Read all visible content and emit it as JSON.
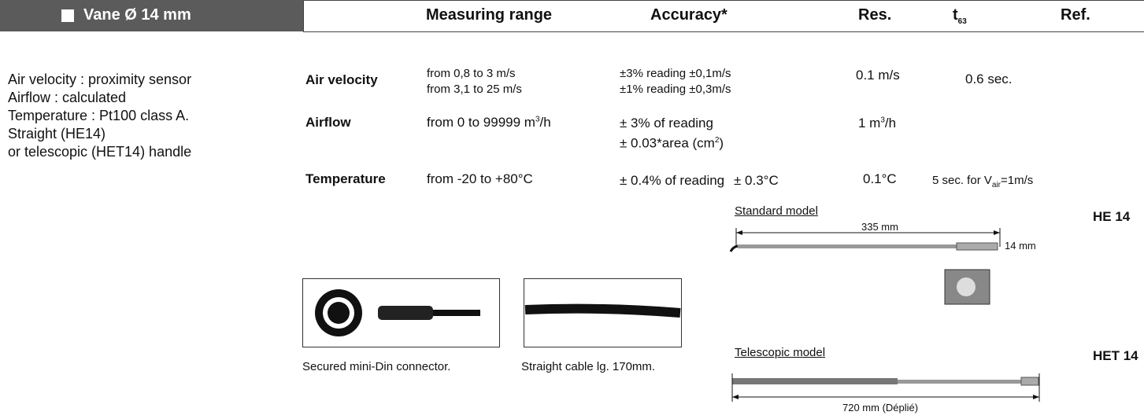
{
  "header": {
    "title": "Vane Ø 14 mm",
    "columns": {
      "range": "Measuring range",
      "accuracy": "Accuracy*",
      "res": "Res.",
      "t63": {
        "t": "t",
        "sub": "63"
      },
      "ref": "Ref."
    }
  },
  "description": [
    "Air velocity : proximity sensor",
    "Airflow : calculated",
    "Temperature : Pt100 class A.",
    "Straight (HE14)",
    "or telescopic (HET14) handle"
  ],
  "rows": [
    {
      "param": "Air velocity",
      "range": [
        "from 0,8 to  3 m/s",
        "from 3,1 to 25 m/s"
      ],
      "accuracy": [
        "±3% reading ±0,1m/s",
        "±1% reading ±0,3m/s"
      ],
      "res": "0.1 m/s",
      "t63": "0.6 sec."
    },
    {
      "param": "Airflow",
      "range": {
        "text": "from 0 to 99999 m",
        "sup": "3",
        "end": "/h"
      },
      "accuracy": [
        "± 3% of reading",
        {
          "text": "± 0.03*area (cm",
          "sup": "2",
          "end": ")"
        }
      ],
      "res": {
        "text": "1 m",
        "sup": "3",
        "end": "/h"
      }
    },
    {
      "param": "Temperature",
      "range": "from -20 to +80°C",
      "accuracy": [
        "± 0.4% of reading",
        "± 0.3°C"
      ],
      "res": "0.1°C",
      "t63": {
        "text": "5 sec. for V",
        "sub": "air",
        "end": "=1m/s"
      }
    }
  ],
  "accessories": [
    {
      "caption": "Secured mini-Din connector."
    },
    {
      "caption": "Straight cable lg. 170mm."
    }
  ],
  "models": [
    {
      "label": "Standard model",
      "length": "335 mm",
      "diameter": "14 mm",
      "ref": "HE 14"
    },
    {
      "label": "Telescopic model",
      "length": "720 mm (Déplié)",
      "ref": "HET 14"
    }
  ]
}
